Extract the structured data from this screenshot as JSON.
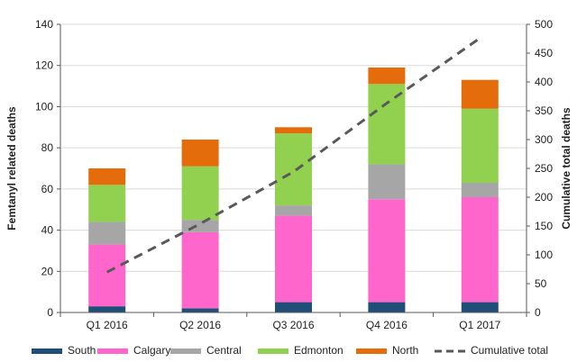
{
  "chart_data": {
    "type": "bar",
    "stacked": true,
    "categories": [
      "Q1 2016",
      "Q2 2016",
      "Q3 2016",
      "Q4 2016",
      "Q1 2017"
    ],
    "series": [
      {
        "name": "South",
        "color": "#1f4e79",
        "values": [
          3,
          2,
          5,
          5,
          5
        ]
      },
      {
        "name": "Calgary",
        "color": "#ff66cc",
        "values": [
          30,
          37,
          42,
          50,
          51
        ]
      },
      {
        "name": "Central",
        "color": "#a6a6a6",
        "values": [
          11,
          6,
          5,
          17,
          7
        ]
      },
      {
        "name": "Edmonton",
        "color": "#92d050",
        "values": [
          18,
          26,
          35,
          39,
          36
        ]
      },
      {
        "name": "North",
        "color": "#e46c0a",
        "values": [
          8,
          13,
          3,
          8,
          14
        ]
      }
    ],
    "line_series": {
      "name": "Cumulative total",
      "color": "#595959",
      "style": "dashed",
      "axis": "right",
      "values": [
        70,
        154,
        244,
        363,
        476
      ]
    },
    "ylabel": "Femtanyl  related deaths",
    "y2label": "Cumulative total deaths",
    "ylim": [
      0,
      140
    ],
    "y2lim": [
      0,
      500
    ],
    "yticks": [
      "0",
      "20",
      "40",
      "60",
      "80",
      "100",
      "120",
      "140"
    ],
    "y2ticks": [
      "0",
      "50",
      "100",
      "150",
      "200",
      "250",
      "300",
      "350",
      "400",
      "450",
      "500"
    ],
    "legend_position": "bottom"
  }
}
